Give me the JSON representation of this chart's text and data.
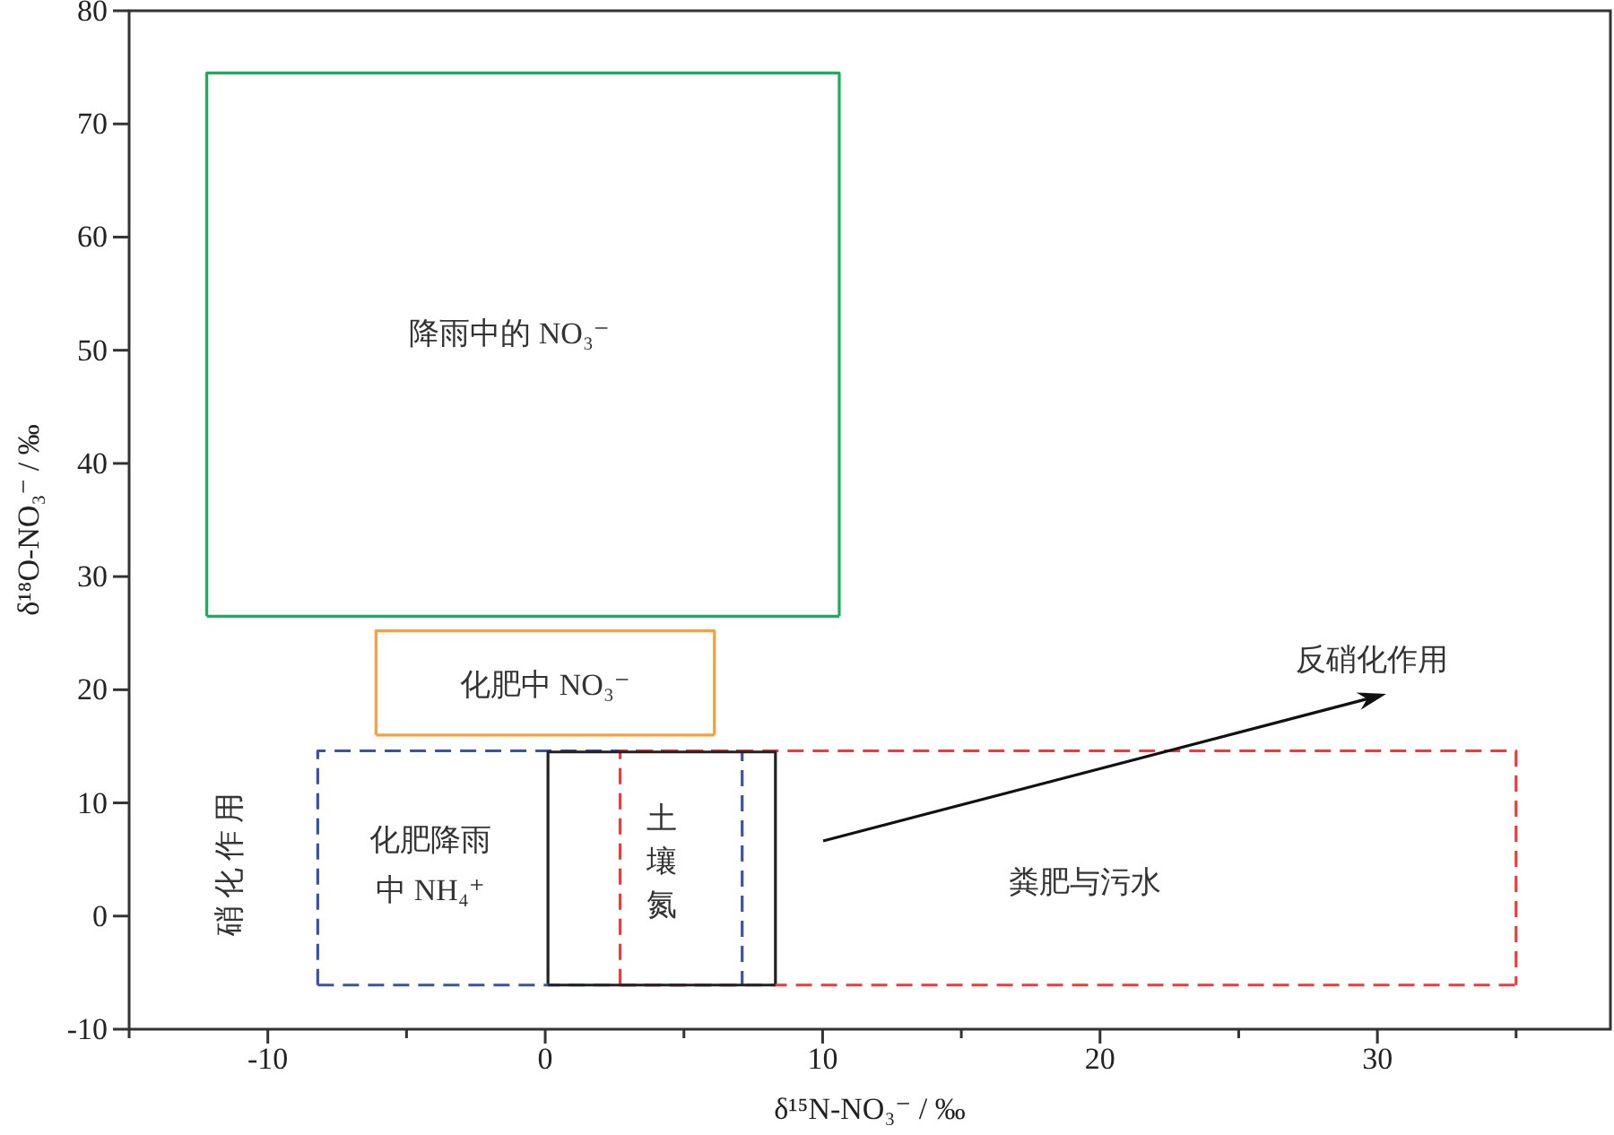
{
  "chart_data": {
    "type": "line",
    "xlabel": "δ¹⁵N-NO₃⁻ / ‰",
    "ylabel": "δ¹⁸O-NO₃⁻ / ‰",
    "xlim": [
      -15,
      38.4
    ],
    "ylim": [
      -10,
      80
    ],
    "xticks": [
      {
        "value": -15,
        "label": null
      },
      -10,
      {
        "value": -5,
        "label": null
      },
      0,
      {
        "value": 5,
        "label": null
      },
      10,
      {
        "value": 15,
        "label": null
      },
      20,
      {
        "value": 25,
        "label": null
      },
      30,
      {
        "value": 35,
        "label": null
      }
    ],
    "yticks": [
      -10,
      0,
      10,
      20,
      30,
      40,
      50,
      60,
      70,
      80
    ],
    "grid": false,
    "marker": "none",
    "series": [
      {
        "color": "#1aae5a",
        "line_style": "solid",
        "x": [
          -12.2,
          -12.2,
          10.6,
          10.6
        ],
        "values": [
          26.5,
          74.5,
          74.5,
          26.5
        ]
      },
      {
        "color": "#f5a040",
        "line_style": "solid",
        "x": [
          -6.1,
          -6.1,
          6.1,
          6.1
        ],
        "values": [
          16.0,
          25.2,
          25.2,
          16.0
        ]
      },
      {
        "color": "#3a54a4",
        "line_style": "dashed",
        "x": [
          -8.2,
          -8.2,
          7.1,
          7.1
        ],
        "values": [
          -6.1,
          14.6,
          14.6,
          -6.1
        ]
      },
      {
        "color": "#f03a3a",
        "line_style": "dashed",
        "x": [
          2.7,
          2.7,
          35.0,
          35.0
        ],
        "values": [
          -6.1,
          14.6,
          14.6,
          -6.1
        ]
      },
      {
        "color": "#222222",
        "line_style": "solid",
        "x": [
          0.1,
          0.1,
          8.3,
          8.3
        ],
        "values": [
          -6.1,
          14.5,
          14.5,
          -6.1
        ]
      },
      {
        "color": "#1aae5a",
        "line_style": "solid",
        "x": [
          -12.2,
          10.6
        ],
        "values": [
          26.5,
          26.5
        ]
      },
      {
        "color": "#f5a040",
        "line_style": "solid",
        "x": [
          -6.1,
          6.1
        ],
        "values": [
          16.0,
          16.0
        ]
      },
      {
        "color": "#3a54a4",
        "line_style": "dashed",
        "x": [
          -8.2,
          7.1
        ],
        "values": [
          -6.1,
          -6.1
        ]
      },
      {
        "color": "#f03a3a",
        "line_style": "dashed",
        "x": [
          2.7,
          35.0
        ],
        "values": [
          -6.1,
          -6.1
        ]
      },
      {
        "color": "#222222",
        "line_style": "solid",
        "x": [
          0.1,
          8.3
        ],
        "values": [
          -6.1,
          -6.1
        ]
      }
    ],
    "annotations": [
      "降雨中的 NO₃⁻",
      "化肥中 NO₃⁻",
      "化肥降雨中 NH₄⁺",
      "土壤氮",
      "硝化作用",
      "粪肥与污水",
      "反硝化作用"
    ]
  }
}
